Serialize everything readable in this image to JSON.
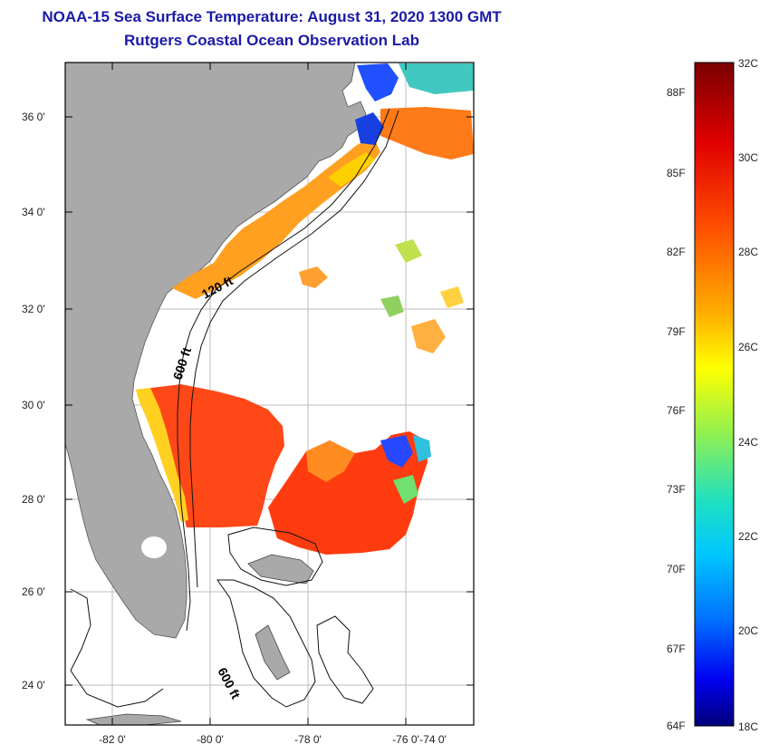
{
  "header": {
    "title": "NOAA-15 Sea Surface Temperature:  August 31, 2020 1300 GMT",
    "subtitle": "Rutgers Coastal Ocean Observation Lab"
  },
  "map": {
    "region": "US Southeast Atlantic coast",
    "lat_labels": [
      "36 0'",
      "34 0'",
      "32 0'",
      "30 0'",
      "28 0'",
      "26 0'",
      "24 0'"
    ],
    "lon_labels": [
      "-82 0'",
      "-80 0'",
      "-78 0'",
      "-76 0'",
      "-74 0'"
    ],
    "contour_labels": [
      "120 ft",
      "600 ft",
      "600 ft"
    ],
    "land_color": "#a9a9a9",
    "cloud_color": "#ffffff"
  },
  "colorbar": {
    "fahrenheit_labels": [
      "88F",
      "85F",
      "82F",
      "79F",
      "76F",
      "73F",
      "70F",
      "67F",
      "64F"
    ],
    "celsius_labels": [
      "32C",
      "30C",
      "28C",
      "26C",
      "24C",
      "22C",
      "20C",
      "18C"
    ],
    "colors": [
      "#800000",
      "#ff0000",
      "#ff8000",
      "#ffff00",
      "#80ff80",
      "#00ffff",
      "#0080ff",
      "#0000ff",
      "#00008f"
    ]
  }
}
